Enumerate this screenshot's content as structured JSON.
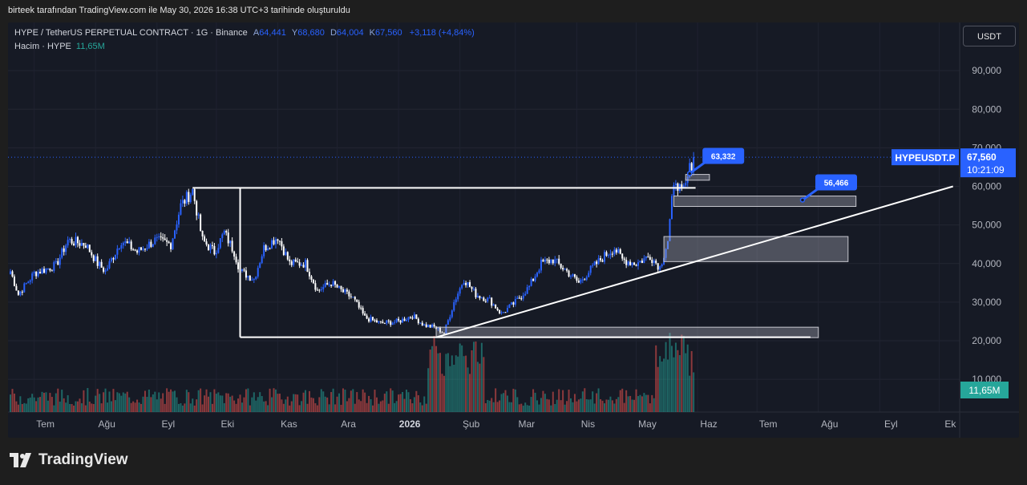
{
  "header": {
    "text": "birteek tarafından TradingView.com ile May 30, 2026 16:38 UTC+3 tarihinde oluşturuldu"
  },
  "legend": {
    "symbol": "HYPE / TetherUS PERPETUAL CONTRACT · 1G · Binance",
    "o_label": "A",
    "o": "64,441",
    "h_label": "Y",
    "h": "68,680",
    "l_label": "D",
    "l": "64,004",
    "c_label": "K",
    "c": "67,560",
    "change": "+3,118 (+4,84%)",
    "volume_label": "Hacim · HYPE",
    "volume": "11,65M"
  },
  "currency_button": "USDT",
  "colors": {
    "up": "#2962ff",
    "down": "#ffffff",
    "vol_up": "#26a69a",
    "vol_down": "#ef5350",
    "background": "#161a25"
  },
  "chart_data": {
    "type": "candlestick",
    "y_ticks": [
      "90,000",
      "80,000",
      "70,000",
      "60,000",
      "50,000",
      "40,000",
      "30,000",
      "20,000",
      "10,000"
    ],
    "y_tick_values": [
      90000,
      80000,
      70000,
      60000,
      50000,
      40000,
      30000,
      20000,
      10000
    ],
    "ylim": [
      7000,
      100000
    ],
    "x_ticks": [
      "Tem",
      "Ağu",
      "Eyl",
      "Eki",
      "Kas",
      "Ara",
      "2026",
      "Şub",
      "Mar",
      "Nis",
      "May",
      "Haz",
      "Tem",
      "Ağu",
      "Eyl",
      "Ek"
    ],
    "x_tick_dates": [
      "2025-07-01",
      "2025-08-01",
      "2025-09-01",
      "2025-10-01",
      "2025-11-01",
      "2025-12-01",
      "2026-01-01",
      "2026-02-01",
      "2026-03-01",
      "2026-04-01",
      "2026-05-01",
      "2026-06-01",
      "2026-07-01",
      "2026-08-01",
      "2026-09-01",
      "2026-10-01"
    ],
    "x_start": "2025-06-19",
    "last_price": {
      "symbol": "HYPEUSDT.P",
      "price": "67,560",
      "value": 67560,
      "countdown": "10:21:09"
    },
    "volume_badge": "11,65M",
    "price_path": [
      [
        "2025-06-19",
        38000
      ],
      [
        "2025-06-23",
        32000
      ],
      [
        "2025-07-01",
        37500
      ],
      [
        "2025-07-12",
        39500
      ],
      [
        "2025-07-18",
        46000
      ],
      [
        "2025-07-27",
        45000
      ],
      [
        "2025-08-02",
        40000
      ],
      [
        "2025-08-06",
        38000
      ],
      [
        "2025-08-14",
        46000
      ],
      [
        "2025-08-22",
        43000
      ],
      [
        "2025-08-31",
        46000
      ],
      [
        "2025-09-08",
        45000
      ],
      [
        "2025-09-13",
        55000
      ],
      [
        "2025-09-19",
        59000
      ],
      [
        "2025-09-24",
        46000
      ],
      [
        "2025-09-30",
        43000
      ],
      [
        "2025-10-05",
        48000
      ],
      [
        "2025-10-10",
        43000
      ],
      [
        "2025-10-13",
        38000
      ],
      [
        "2025-10-20",
        36000
      ],
      [
        "2025-10-25",
        44000
      ],
      [
        "2025-11-01",
        47000
      ],
      [
        "2025-11-07",
        40000
      ],
      [
        "2025-11-15",
        40000
      ],
      [
        "2025-11-21",
        33000
      ],
      [
        "2025-11-28",
        35000
      ],
      [
        "2025-12-03",
        33000
      ],
      [
        "2025-12-09",
        31000
      ],
      [
        "2025-12-15",
        26000
      ],
      [
        "2025-12-23",
        24500
      ],
      [
        "2026-01-01",
        25000
      ],
      [
        "2026-01-08",
        26500
      ],
      [
        "2026-01-14",
        24000
      ],
      [
        "2026-01-19",
        23500
      ],
      [
        "2026-01-24",
        22000
      ],
      [
        "2026-01-29",
        30000
      ],
      [
        "2026-02-03",
        36000
      ],
      [
        "2026-02-09",
        32000
      ],
      [
        "2026-02-16",
        30500
      ],
      [
        "2026-02-22",
        27000
      ],
      [
        "2026-03-01",
        30000
      ],
      [
        "2026-03-08",
        34000
      ],
      [
        "2026-03-14",
        40000
      ],
      [
        "2026-03-20",
        41000
      ],
      [
        "2026-03-27",
        38000
      ],
      [
        "2026-04-02",
        35000
      ],
      [
        "2026-04-09",
        39000
      ],
      [
        "2026-04-15",
        42000
      ],
      [
        "2026-04-20",
        44000
      ],
      [
        "2026-04-24",
        41000
      ],
      [
        "2026-05-01",
        40000
      ],
      [
        "2026-05-08",
        42000
      ],
      [
        "2026-05-13",
        39000
      ],
      [
        "2026-05-17",
        46000
      ],
      [
        "2026-05-19",
        56000
      ],
      [
        "2026-05-21",
        62000
      ],
      [
        "2026-05-24",
        58000
      ],
      [
        "2026-05-26",
        60000
      ],
      [
        "2026-05-28",
        64441
      ],
      [
        "2026-05-30",
        67560
      ]
    ],
    "horizontal_lines": [
      {
        "y": 59600,
        "from": "2025-09-19",
        "to": "2026-05-31"
      },
      {
        "y": 20900,
        "from": "2025-10-13",
        "to": "2026-07-28"
      }
    ],
    "vertical_lines": [
      {
        "x": "2025-10-13",
        "from": 20900,
        "to": 59600
      }
    ],
    "trendline": {
      "from": [
        "2026-01-20",
        20900
      ],
      "to": [
        "2026-10-08",
        60000
      ]
    },
    "zones": [
      {
        "from": "2026-01-20",
        "to": "2026-08-01",
        "y1": 20800,
        "y2": 23500
      },
      {
        "from": "2026-05-15",
        "to": "2026-08-16",
        "y1": 40500,
        "y2": 47000
      },
      {
        "from": "2026-05-20",
        "to": "2026-08-20",
        "y1": 54800,
        "y2": 57500
      },
      {
        "from": "2026-05-26",
        "to": "2026-06-07",
        "y1": 61600,
        "y2": 63100
      }
    ],
    "callouts": [
      {
        "label": "63,332",
        "date": "2026-05-28",
        "price": 63332
      },
      {
        "label": "56,466",
        "date": "2026-07-24",
        "price": 56466
      }
    ]
  }
}
